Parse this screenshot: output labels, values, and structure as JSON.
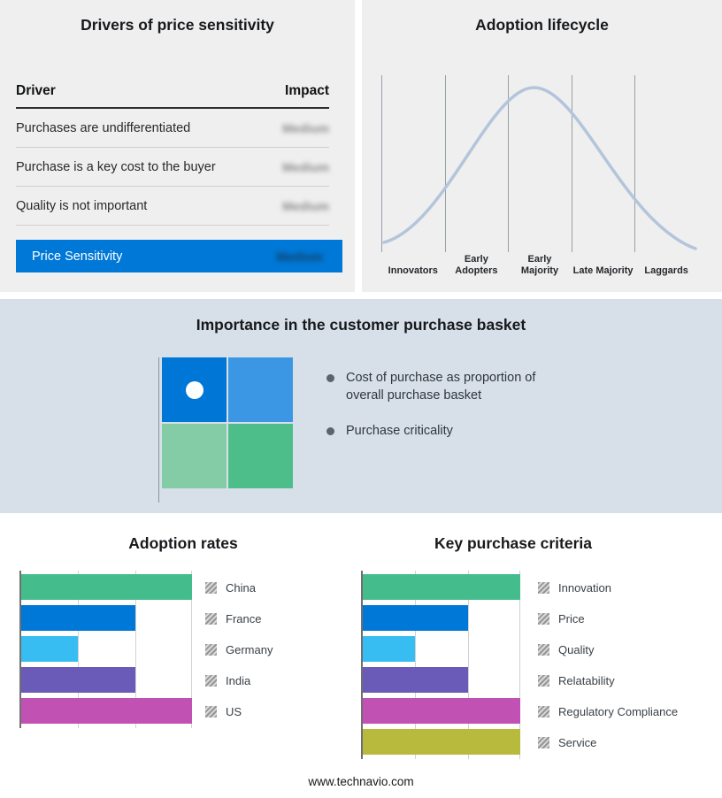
{
  "drivers": {
    "title": "Drivers of price sensitivity",
    "col_driver": "Driver",
    "col_impact": "Impact",
    "rows": [
      {
        "driver": "Purchases are undifferentiated",
        "impact": "Medium"
      },
      {
        "driver": "Purchase is a key cost to the buyer",
        "impact": "Medium"
      },
      {
        "driver": "Quality is not important",
        "impact": "Medium"
      }
    ],
    "highlight": {
      "driver": "Price Sensitivity",
      "impact": "Medium"
    }
  },
  "lifecycle": {
    "title": "Adoption lifecycle"
  },
  "basket": {
    "title": "Importance in the customer purchase basket",
    "bullets": [
      "Cost of purchase as proportion of overall purchase basket",
      "Purchase criticality"
    ]
  },
  "footer": {
    "url": "www.technavio.com"
  },
  "colors": {
    "highlight_blue": "#0078D7",
    "band_bg": "#D7E0E9",
    "panel_bg": "#EFEFEF",
    "curve": "#B3C5DA",
    "quad_tl": "#0076D6",
    "quad_tr": "#3B97E4",
    "quad_bl": "#84CCA6",
    "quad_br": "#4DBE8A"
  },
  "chart_data": [
    {
      "id": "lifecycle",
      "type": "line",
      "title": "Adoption lifecycle",
      "categories": [
        "Innovators",
        "Early Adopters",
        "Early Majority",
        "Late Majority",
        "Laggards"
      ],
      "shape": "bell-curve",
      "grid": true,
      "notes": "Unlabeled bell curve spanning five adopter stages; vertical gridlines separate stages"
    },
    {
      "id": "adoption",
      "type": "bar",
      "orientation": "horizontal",
      "title": "Adoption rates",
      "categories": [
        "China",
        "France",
        "Germany",
        "India",
        "US"
      ],
      "values": [
        3,
        2,
        1,
        2,
        3
      ],
      "xlim": [
        0,
        3
      ],
      "value_units": "relative units (no numeric axis shown)",
      "colors": [
        "#44BC8C",
        "#0078D7",
        "#38BDF2",
        "#6A5BB8",
        "#C251B4"
      ],
      "legend_position": "right",
      "grid": true
    },
    {
      "id": "criteria",
      "type": "bar",
      "orientation": "horizontal",
      "title": "Key purchase criteria",
      "categories": [
        "Innovation",
        "Price",
        "Quality",
        "Relatability",
        "Regulatory Compliance",
        "Service"
      ],
      "values": [
        3,
        2,
        1,
        2,
        3,
        3
      ],
      "xlim": [
        0,
        3
      ],
      "value_units": "relative units (no numeric axis shown)",
      "colors": [
        "#44BC8C",
        "#0078D7",
        "#38BDF2",
        "#6A5BB8",
        "#C251B4",
        "#B8BA3D"
      ],
      "legend_position": "right",
      "grid": true
    }
  ]
}
